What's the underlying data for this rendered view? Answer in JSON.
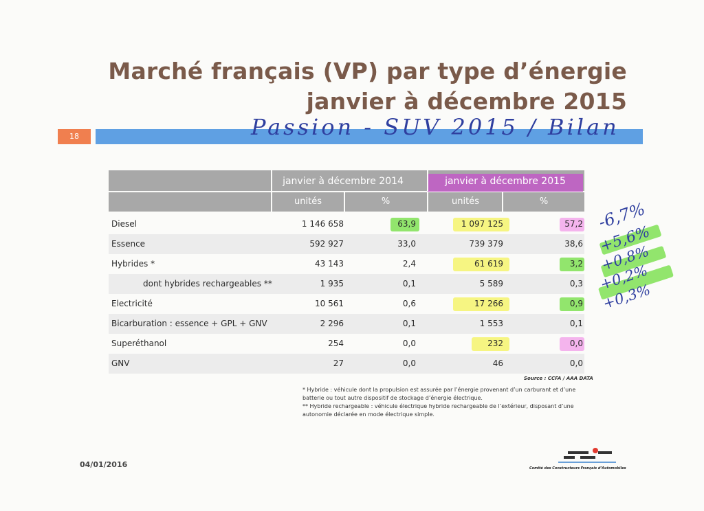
{
  "title": {
    "line1": "Marché français (VP) par type d’énergie",
    "line2": "janvier à décembre 2015"
  },
  "page_number": "18",
  "handwritten_note": "Passion - SUV 2015 / Bilan",
  "table": {
    "period_2014": "janvier à décembre 2014",
    "period_2015": "janvier à décembre 2015",
    "col_units": "unités",
    "col_pct": "%",
    "rows": [
      {
        "label": "Diesel",
        "u14": "1 146 658",
        "p14": "63,9",
        "u15": "1 097 125",
        "p15": "57,2"
      },
      {
        "label": "Essence",
        "u14": "592 927",
        "p14": "33,0",
        "u15": "739 379",
        "p15": "38,6"
      },
      {
        "label": "Hybrides *",
        "u14": "43 143",
        "p14": "2,4",
        "u15": "61 619",
        "p15": "3,2"
      },
      {
        "label": "dont hybrides rechargeables **",
        "u14": "1 935",
        "p14": "0,1",
        "u15": "5 589",
        "p15": "0,3"
      },
      {
        "label": "Electricité",
        "u14": "10 561",
        "p14": "0,6",
        "u15": "17 266",
        "p15": "0,9"
      },
      {
        "label": "Bicarburation : essence + GPL + GNV",
        "u14": "2 296",
        "p14": "0,1",
        "u15": "1 553",
        "p15": "0,1"
      },
      {
        "label": "Superéthanol",
        "u14": "254",
        "p14": "0,0",
        "u15": "232",
        "p15": "0,0"
      },
      {
        "label": "GNV",
        "u14": "27",
        "p14": "0,0",
        "u15": "46",
        "p15": "0,0"
      }
    ]
  },
  "handwritten_diffs": [
    "-6,7%",
    "+5,6%",
    "+0,8%",
    "+0,2%",
    "+0,3%"
  ],
  "source": "Source : CCFA / AAA DATA",
  "notes": {
    "hybride": "* Hybride : véhicule dont la propulsion est assurée par l’énergie provenant d’un carburant et d’une batterie ou tout autre dispositif de stockage d’énergie électrique.",
    "rechargeable": "** Hybride rechargeable : véhicule électrique hybride rechargeable de l’extérieur, disposant d’une autonomie déclarée en mode électrique simple."
  },
  "date": "04/01/2016",
  "organization": "Comité des Constructeurs Français d’Automobiles",
  "colors": {
    "title": "#7a5a4a",
    "band": "#5fa0e3",
    "badge": "#f07f4f",
    "header": "#a8a8a8",
    "yellow_highlight": "#f4f35a",
    "green_highlight": "#78e04a",
    "pink_highlight": "#f29ce8",
    "ink": "#2f3f9f"
  }
}
